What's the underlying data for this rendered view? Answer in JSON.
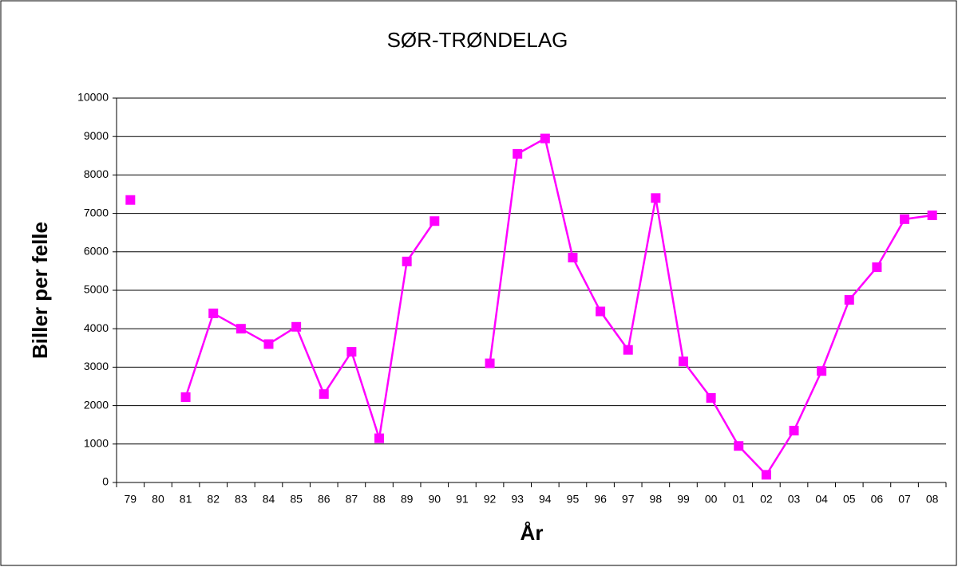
{
  "chart_data": {
    "type": "line",
    "title": "SØR-TRØNDELAG",
    "xlabel": "År",
    "ylabel": "Biller per felle",
    "categories": [
      "79",
      "80",
      "81",
      "82",
      "83",
      "84",
      "85",
      "86",
      "87",
      "88",
      "89",
      "90",
      "91",
      "92",
      "93",
      "94",
      "95",
      "96",
      "97",
      "98",
      "99",
      "00",
      "01",
      "02",
      "03",
      "04",
      "05",
      "06",
      "07",
      "08"
    ],
    "series": [
      {
        "name": "Sør-Trøndelag",
        "color": "#ff00ff",
        "values": [
          7350,
          null,
          2220,
          4400,
          4000,
          3600,
          4050,
          2300,
          3400,
          1150,
          5750,
          6800,
          null,
          3100,
          8550,
          8950,
          5850,
          4450,
          3450,
          7400,
          3150,
          2200,
          950,
          200,
          1350,
          2900,
          4750,
          5600,
          6850,
          6950
        ]
      }
    ],
    "ylim": [
      0,
      10000
    ],
    "yticks": [
      0,
      1000,
      2000,
      3000,
      4000,
      5000,
      6000,
      7000,
      8000,
      9000,
      10000
    ],
    "grid": true
  }
}
